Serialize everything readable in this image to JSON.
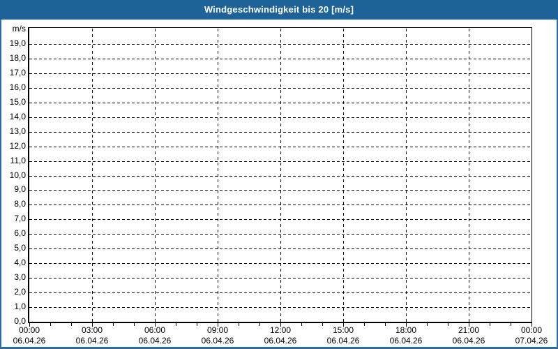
{
  "title_bar": {
    "title": "Windgeschwindigkeit bis 20 [m/s]",
    "bg_color": "#1d6397",
    "text_color": "#ffffff"
  },
  "frame": {
    "border_color": "#2b6ca3",
    "background_color": "#fdfefd"
  },
  "chart_data": {
    "type": "line",
    "title": "Windgeschwindigkeit bis 20 [m/s]",
    "unit_label": "m/s",
    "ylim": [
      0,
      20.1
    ],
    "xlim_hours": [
      0,
      24
    ],
    "grid": {
      "style": "dashed",
      "color": "#000000",
      "horizontal": true,
      "vertical": true
    },
    "axis_color": "#000000",
    "series": [],
    "y_ticks": [
      {
        "value": 0,
        "label": "0,0"
      },
      {
        "value": 1,
        "label": "1,0"
      },
      {
        "value": 2,
        "label": "2,0"
      },
      {
        "value": 3,
        "label": "3,0"
      },
      {
        "value": 4,
        "label": "4,0"
      },
      {
        "value": 5,
        "label": "5,0"
      },
      {
        "value": 6,
        "label": "6,0"
      },
      {
        "value": 7,
        "label": "7,0"
      },
      {
        "value": 8,
        "label": "8,0"
      },
      {
        "value": 9,
        "label": "9,0"
      },
      {
        "value": 10,
        "label": "10,0"
      },
      {
        "value": 11,
        "label": "11,0"
      },
      {
        "value": 12,
        "label": "12,0"
      },
      {
        "value": 13,
        "label": "13,0"
      },
      {
        "value": 14,
        "label": "14,0"
      },
      {
        "value": 15,
        "label": "15,0"
      },
      {
        "value": 16,
        "label": "16,0"
      },
      {
        "value": 17,
        "label": "17,0"
      },
      {
        "value": 18,
        "label": "18,0"
      },
      {
        "value": 19,
        "label": "19,0"
      }
    ],
    "x_ticks": [
      {
        "hour": 0,
        "time": "00:00",
        "date": "06.04.26"
      },
      {
        "hour": 3,
        "time": "03:00",
        "date": "06.04.26"
      },
      {
        "hour": 6,
        "time": "06:00",
        "date": "06.04.26"
      },
      {
        "hour": 9,
        "time": "09:00",
        "date": "06.04.26"
      },
      {
        "hour": 12,
        "time": "12:00",
        "date": "06.04.26"
      },
      {
        "hour": 15,
        "time": "15:00",
        "date": "06.04.26"
      },
      {
        "hour": 18,
        "time": "18:00",
        "date": "06.04.26"
      },
      {
        "hour": 21,
        "time": "21:00",
        "date": "06.04.26"
      },
      {
        "hour": 24,
        "time": "00:00",
        "date": "07.04.26"
      }
    ],
    "minor_x_tick_interval_hours": 1
  }
}
